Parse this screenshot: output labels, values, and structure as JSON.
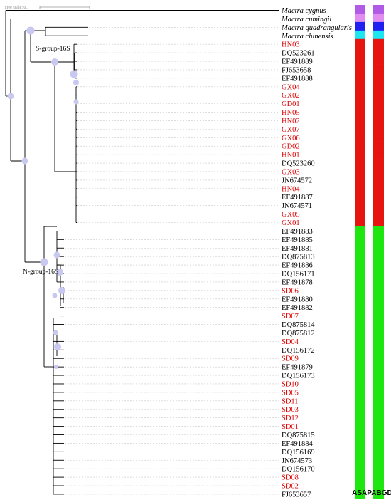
{
  "scale": {
    "label": "Tree scale: 0.1"
  },
  "clades": {
    "s_group": "S-group-16S",
    "n_group": "N-group-16S"
  },
  "columns": {
    "asap": "ASAP",
    "abgd": "ABGD"
  },
  "colors": {
    "outgroup_a": "#b05be6",
    "outgroup_b": "#e08cf0",
    "outgroup_c": "#1f1ff0",
    "outgroup_d": "#1ee6f0",
    "s_group": "#e6150f",
    "n_group": "#1ee60f",
    "sample_label": "#dc0000",
    "accession_label": "#000000",
    "node": "#c8c8f0"
  },
  "taxa": [
    {
      "label": "Mactra cygnus",
      "italic": true,
      "group": "outgroup_a",
      "sample": false
    },
    {
      "label": "Mactra cumingii",
      "italic": true,
      "group": "outgroup_b",
      "sample": false
    },
    {
      "label": "Mactra quadrangularis",
      "italic": true,
      "group": "outgroup_c",
      "sample": false
    },
    {
      "label": "Mactra chinensis",
      "italic": true,
      "group": "outgroup_d",
      "sample": false
    },
    {
      "label": "HN03",
      "group": "s_group",
      "sample": true
    },
    {
      "label": "DQ523261",
      "group": "s_group",
      "sample": false
    },
    {
      "label": "EF491889",
      "group": "s_group",
      "sample": false
    },
    {
      "label": "FJ653658",
      "group": "s_group",
      "sample": false
    },
    {
      "label": "EF491888",
      "group": "s_group",
      "sample": false
    },
    {
      "label": "GX04",
      "group": "s_group",
      "sample": true
    },
    {
      "label": "GX02",
      "group": "s_group",
      "sample": true
    },
    {
      "label": "GD01",
      "group": "s_group",
      "sample": true
    },
    {
      "label": "HN05",
      "group": "s_group",
      "sample": true
    },
    {
      "label": "HN02",
      "group": "s_group",
      "sample": true
    },
    {
      "label": "GX07",
      "group": "s_group",
      "sample": true
    },
    {
      "label": "GX06",
      "group": "s_group",
      "sample": true
    },
    {
      "label": "GD02",
      "group": "s_group",
      "sample": true
    },
    {
      "label": "HN01",
      "group": "s_group",
      "sample": true
    },
    {
      "label": "DQ523260",
      "group": "s_group",
      "sample": false
    },
    {
      "label": "GX03",
      "group": "s_group",
      "sample": true
    },
    {
      "label": "JN674572",
      "group": "s_group",
      "sample": false
    },
    {
      "label": "HN04",
      "group": "s_group",
      "sample": true
    },
    {
      "label": "EF491887",
      "group": "s_group",
      "sample": false
    },
    {
      "label": "JN674571",
      "group": "s_group",
      "sample": false
    },
    {
      "label": "GX05",
      "group": "s_group",
      "sample": true
    },
    {
      "label": "GX01",
      "group": "s_group",
      "sample": true
    },
    {
      "label": "EF491883",
      "group": "n_group",
      "sample": false
    },
    {
      "label": "EF491885",
      "group": "n_group",
      "sample": false
    },
    {
      "label": "EF491881",
      "group": "n_group",
      "sample": false
    },
    {
      "label": "DQ875813",
      "group": "n_group",
      "sample": false
    },
    {
      "label": "EF491886",
      "group": "n_group",
      "sample": false
    },
    {
      "label": "DQ156171",
      "group": "n_group",
      "sample": false
    },
    {
      "label": "EF491878",
      "group": "n_group",
      "sample": false
    },
    {
      "label": "SD06",
      "group": "n_group",
      "sample": true
    },
    {
      "label": "EF491880",
      "group": "n_group",
      "sample": false
    },
    {
      "label": "EF491882",
      "group": "n_group",
      "sample": false
    },
    {
      "label": "SD07",
      "group": "n_group",
      "sample": true
    },
    {
      "label": "DQ875814",
      "group": "n_group",
      "sample": false
    },
    {
      "label": "DQ875812",
      "group": "n_group",
      "sample": false
    },
    {
      "label": "SD04",
      "group": "n_group",
      "sample": true
    },
    {
      "label": "DQ156172",
      "group": "n_group",
      "sample": false
    },
    {
      "label": "SD09",
      "group": "n_group",
      "sample": true
    },
    {
      "label": "EF491879",
      "group": "n_group",
      "sample": false
    },
    {
      "label": "DQ156173",
      "group": "n_group",
      "sample": false
    },
    {
      "label": "SD10",
      "group": "n_group",
      "sample": true
    },
    {
      "label": "SD05",
      "group": "n_group",
      "sample": true
    },
    {
      "label": "SD11",
      "group": "n_group",
      "sample": true
    },
    {
      "label": "SD03",
      "group": "n_group",
      "sample": true
    },
    {
      "label": "SD12",
      "group": "n_group",
      "sample": true
    },
    {
      "label": "SD01",
      "group": "n_group",
      "sample": true
    },
    {
      "label": "DQ875815",
      "group": "n_group",
      "sample": false
    },
    {
      "label": "EF491884",
      "group": "n_group",
      "sample": false
    },
    {
      "label": "DQ156169",
      "group": "n_group",
      "sample": false
    },
    {
      "label": "JN674573",
      "group": "n_group",
      "sample": false
    },
    {
      "label": "DQ156170",
      "group": "n_group",
      "sample": false
    },
    {
      "label": "SD08",
      "group": "n_group",
      "sample": true
    },
    {
      "label": "SD02",
      "group": "n_group",
      "sample": true
    },
    {
      "label": "FJ653657",
      "group": "n_group",
      "sample": false
    }
  ]
}
